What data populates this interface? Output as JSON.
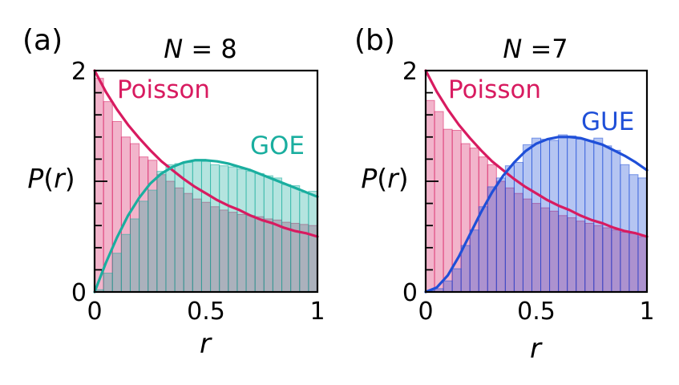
{
  "chart_data": [
    {
      "type": "bar",
      "panel_label": "(a)",
      "title_var": "N",
      "title_rel": " = 8",
      "xlabel": "r",
      "ylabel_var": "P",
      "ylabel_paren_open": "(",
      "ylabel_arg": "r",
      "ylabel_paren_close": ")",
      "xlim": [
        0,
        1
      ],
      "ylim": [
        0,
        2
      ],
      "x_ticks": [
        0,
        0.5,
        1
      ],
      "x_tick_labels": [
        "0",
        "0.5",
        "1"
      ],
      "y_ticks": [
        0,
        2
      ],
      "y_tick_labels": [
        "0",
        "2"
      ],
      "bin_width": 0.04,
      "series": [
        {
          "name": "Poisson",
          "kind": "histogram",
          "color": "#d81b60",
          "values": [
            1.93,
            1.72,
            1.54,
            1.4,
            1.34,
            1.22,
            1.19,
            1.06,
            1.0,
            0.94,
            0.89,
            0.84,
            0.81,
            0.77,
            0.74,
            0.72,
            0.7,
            0.69,
            0.68,
            0.66,
            0.65,
            0.63,
            0.62,
            0.61,
            0.6
          ]
        },
        {
          "name": "GOE",
          "kind": "histogram",
          "color": "#1aae9f",
          "values": [
            0.02,
            0.17,
            0.35,
            0.52,
            0.66,
            0.82,
            0.92,
            1.09,
            1.15,
            1.16,
            1.17,
            1.19,
            1.18,
            1.15,
            1.14,
            1.13,
            1.11,
            1.09,
            1.07,
            1.05,
            1.03,
            0.97,
            0.96,
            0.9,
            0.91
          ]
        },
        {
          "name": "Poisson",
          "kind": "curve",
          "label": "Poisson",
          "color": "#d81b60",
          "x": [
            0,
            0.05,
            0.1,
            0.15,
            0.2,
            0.25,
            0.3,
            0.35,
            0.4,
            0.45,
            0.5,
            0.55,
            0.6,
            0.65,
            0.7,
            0.75,
            0.8,
            0.85,
            0.9,
            0.95,
            1.0
          ],
          "y": [
            2.0,
            1.81,
            1.65,
            1.51,
            1.39,
            1.28,
            1.18,
            1.1,
            1.02,
            0.95,
            0.89,
            0.83,
            0.78,
            0.74,
            0.69,
            0.65,
            0.62,
            0.58,
            0.55,
            0.53,
            0.5
          ]
        },
        {
          "name": "GOE",
          "kind": "curve",
          "label": "GOE",
          "color": "#1aae9f",
          "x": [
            0,
            0.05,
            0.1,
            0.15,
            0.2,
            0.25,
            0.3,
            0.35,
            0.4,
            0.45,
            0.5,
            0.55,
            0.6,
            0.65,
            0.7,
            0.75,
            0.8,
            0.85,
            0.9,
            0.95,
            1.0
          ],
          "y": [
            0.0,
            0.26,
            0.49,
            0.69,
            0.85,
            0.98,
            1.07,
            1.13,
            1.17,
            1.19,
            1.19,
            1.18,
            1.16,
            1.13,
            1.1,
            1.06,
            1.02,
            0.98,
            0.94,
            0.9,
            0.86
          ]
        }
      ]
    },
    {
      "type": "bar",
      "panel_label": "(b)",
      "title_var": "N",
      "title_rel": " =7",
      "xlabel": "r",
      "ylabel_var": "P",
      "ylabel_paren_open": "(",
      "ylabel_arg": "r",
      "ylabel_paren_close": ")",
      "xlim": [
        0,
        1
      ],
      "ylim": [
        0,
        2
      ],
      "x_ticks": [
        0,
        0.5,
        1
      ],
      "x_tick_labels": [
        "0",
        "0.5",
        "1"
      ],
      "y_ticks": [
        0,
        2
      ],
      "y_tick_labels": [
        "0",
        "2"
      ],
      "bin_width": 0.04,
      "series": [
        {
          "name": "Poisson",
          "kind": "histogram",
          "color": "#d81b60",
          "values": [
            1.73,
            1.63,
            1.47,
            1.46,
            1.34,
            1.3,
            1.22,
            1.15,
            1.0,
            0.94,
            0.89,
            0.84,
            0.8,
            0.76,
            0.73,
            0.69,
            0.67,
            0.64,
            0.62,
            0.6,
            0.58,
            0.56,
            0.54,
            0.53,
            0.5
          ]
        },
        {
          "name": "GUE",
          "kind": "histogram",
          "color": "#1f4fd8",
          "values": [
            0.01,
            0.03,
            0.1,
            0.21,
            0.42,
            0.56,
            0.77,
            0.95,
            1.03,
            1.14,
            1.17,
            1.33,
            1.39,
            1.38,
            1.37,
            1.42,
            1.41,
            1.38,
            1.37,
            1.39,
            1.32,
            1.28,
            1.15,
            1.06,
            1.03
          ]
        },
        {
          "name": "Poisson",
          "kind": "curve",
          "label": "Poisson",
          "color": "#d81b60",
          "x": [
            0,
            0.05,
            0.1,
            0.15,
            0.2,
            0.25,
            0.3,
            0.35,
            0.4,
            0.45,
            0.5,
            0.55,
            0.6,
            0.65,
            0.7,
            0.75,
            0.8,
            0.85,
            0.9,
            0.95,
            1.0
          ],
          "y": [
            2.0,
            1.81,
            1.65,
            1.51,
            1.39,
            1.28,
            1.18,
            1.1,
            1.02,
            0.95,
            0.89,
            0.83,
            0.78,
            0.74,
            0.69,
            0.65,
            0.62,
            0.58,
            0.55,
            0.53,
            0.5
          ]
        },
        {
          "name": "GUE",
          "kind": "curve",
          "label": "GUE",
          "color": "#1f4fd8",
          "x": [
            0,
            0.05,
            0.1,
            0.15,
            0.2,
            0.25,
            0.3,
            0.35,
            0.4,
            0.45,
            0.5,
            0.55,
            0.6,
            0.65,
            0.7,
            0.75,
            0.8,
            0.85,
            0.9,
            0.95,
            1.0
          ],
          "y": [
            0.0,
            0.04,
            0.15,
            0.32,
            0.52,
            0.72,
            0.9,
            1.05,
            1.17,
            1.27,
            1.34,
            1.38,
            1.4,
            1.4,
            1.39,
            1.36,
            1.33,
            1.28,
            1.23,
            1.17,
            1.1
          ]
        }
      ]
    }
  ]
}
